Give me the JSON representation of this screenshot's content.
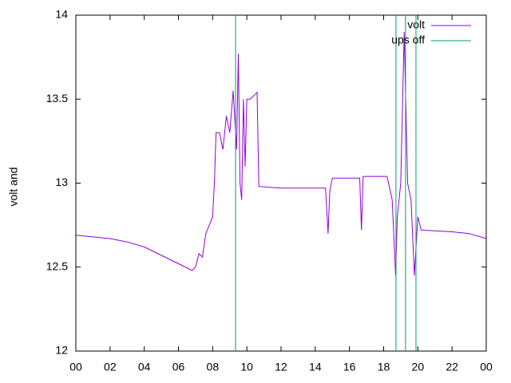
{
  "chart_data": {
    "type": "line",
    "ylabel": "volt and",
    "xlim": [
      0,
      24
    ],
    "xticks": [
      {
        "value": 0,
        "label": "00"
      },
      {
        "value": 2,
        "label": "02"
      },
      {
        "value": 4,
        "label": "04"
      },
      {
        "value": 6,
        "label": "06"
      },
      {
        "value": 8,
        "label": "08"
      },
      {
        "value": 10,
        "label": "10"
      },
      12,
      14,
      16,
      18,
      20,
      22,
      {
        "value": 24,
        "label": "00"
      }
    ],
    "ylim": [
      12,
      14
    ],
    "yticks": [
      12,
      12.5,
      13,
      13.5,
      14
    ],
    "legend": "top-right",
    "series": [
      {
        "name": "volt",
        "color": "#9400d3",
        "style": "line",
        "x": [
          0,
          1,
          2,
          3,
          4,
          5,
          6,
          6.8,
          7.0,
          7.2,
          7.4,
          7.6,
          7.8,
          8.0,
          8.1,
          8.2,
          8.4,
          8.6,
          8.8,
          9.0,
          9.2,
          9.4,
          9.5,
          9.6,
          9.7,
          9.8,
          9.9,
          10.0,
          10.2,
          10.6,
          10.7,
          12.0,
          14.0,
          14.6,
          14.75,
          14.85,
          15.0,
          16.6,
          16.7,
          16.8,
          18.2,
          18.5,
          18.7,
          18.8,
          19.0,
          19.2,
          19.4,
          19.6,
          19.8,
          20.0,
          20.2,
          22.0,
          23.0,
          24.0
        ],
        "values": [
          12.69,
          12.68,
          12.67,
          12.65,
          12.62,
          12.57,
          12.52,
          12.48,
          12.5,
          12.58,
          12.56,
          12.7,
          12.75,
          12.8,
          13.0,
          13.3,
          13.3,
          13.2,
          13.4,
          13.3,
          13.55,
          13.2,
          13.77,
          13.0,
          12.9,
          13.5,
          13.1,
          13.5,
          13.5,
          13.54,
          12.98,
          12.97,
          12.97,
          12.97,
          12.7,
          12.95,
          13.03,
          13.03,
          12.72,
          13.04,
          13.04,
          12.9,
          12.45,
          12.8,
          13.0,
          13.9,
          13.0,
          12.9,
          12.45,
          12.8,
          12.72,
          12.71,
          12.7,
          12.67
        ]
      },
      {
        "name": "ups off",
        "color": "#009e73",
        "style": "impulse",
        "x": [
          9.34,
          18.72,
          19.28,
          19.89
        ],
        "values": [
          14,
          14,
          14,
          14
        ]
      }
    ]
  }
}
